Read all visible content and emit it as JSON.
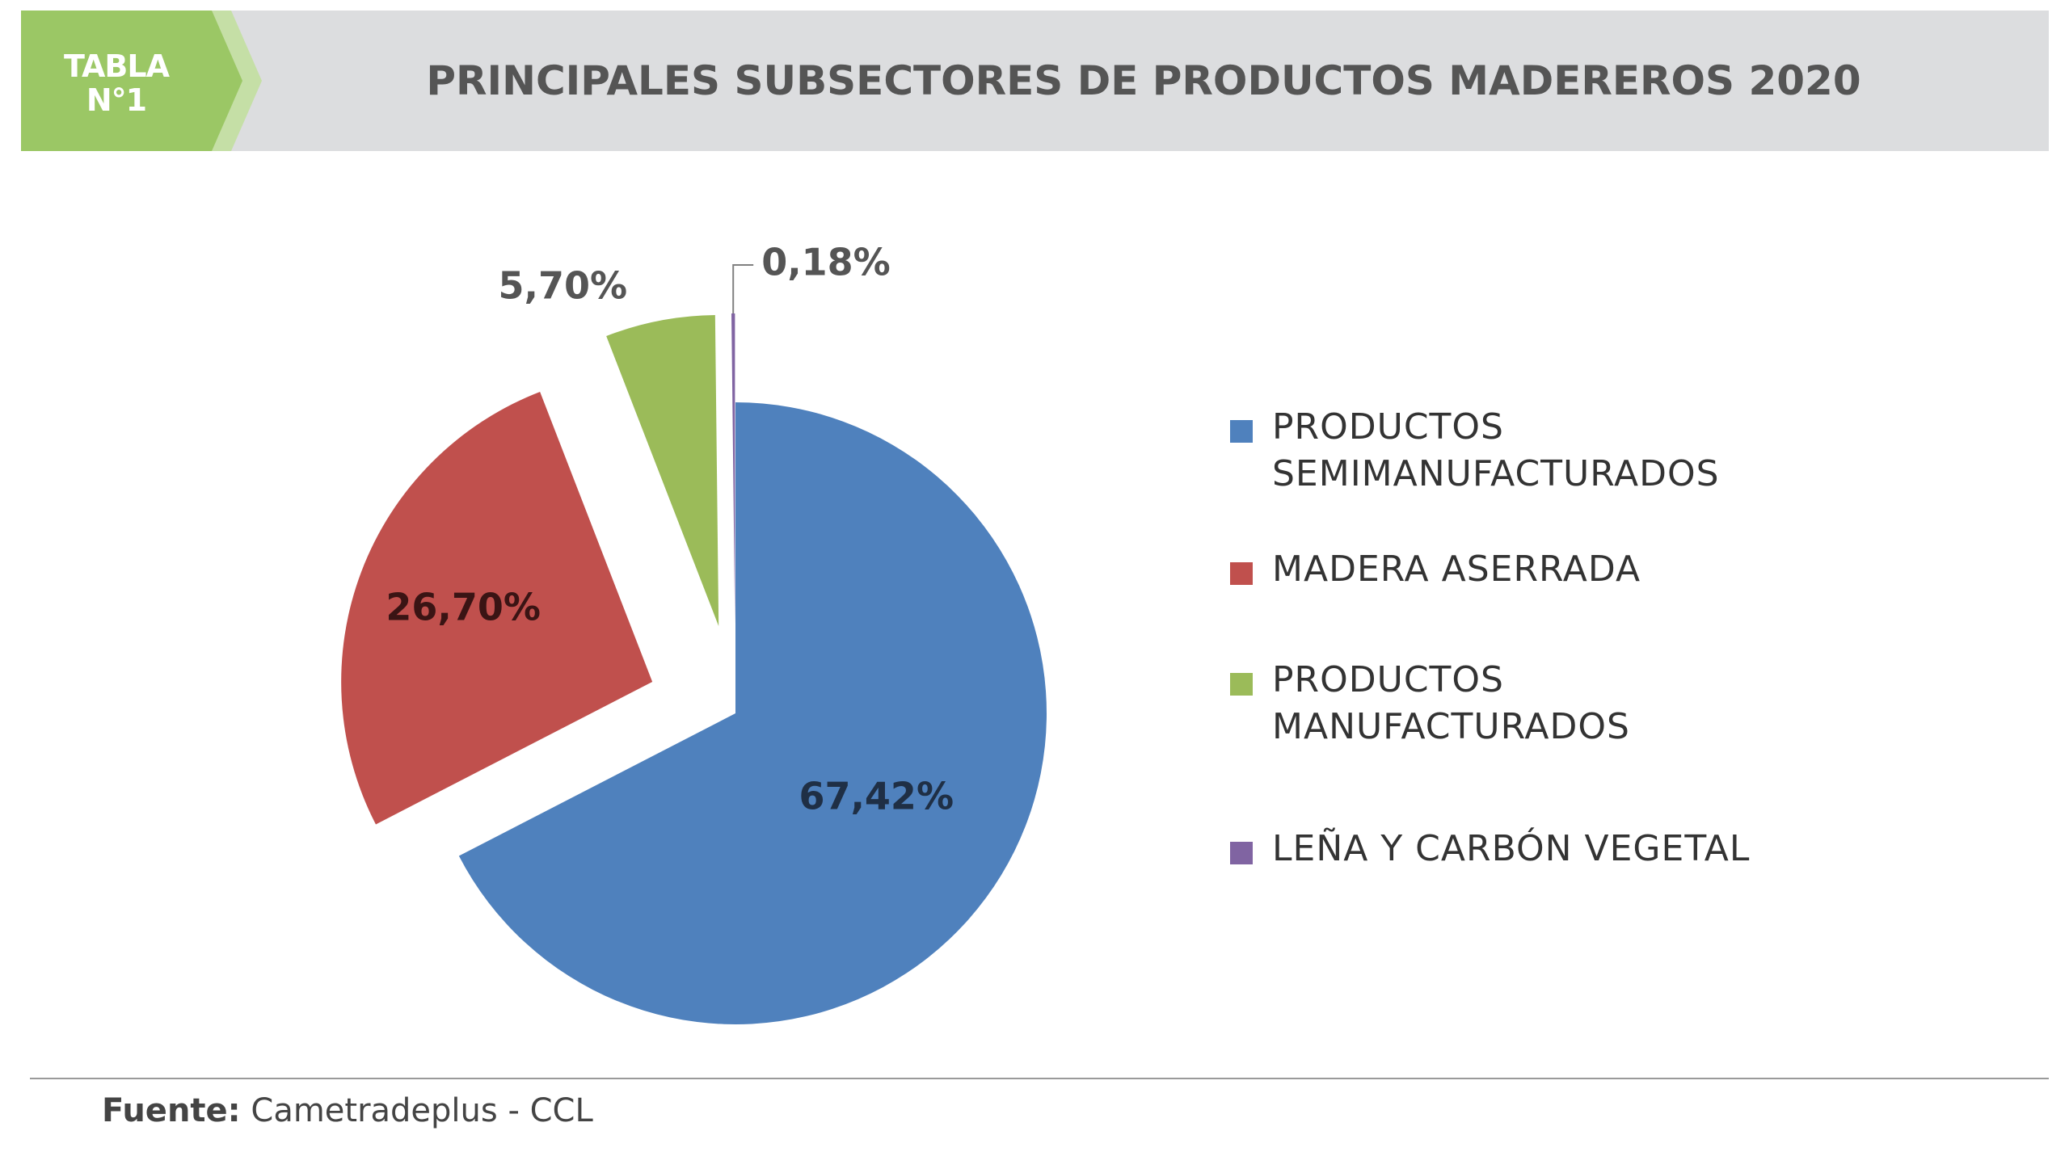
{
  "header": {
    "badge_line1": "TABLA",
    "badge_line2": "N°1",
    "title": "PRINCIPALES SUBSECTORES DE PRODUCTOS MADEREROS 2020"
  },
  "colors": {
    "header_bg": "#dcdddf",
    "badge_green": "#9bc765",
    "badge_light_green": "#c5dfa6"
  },
  "chart_data": {
    "type": "pie",
    "title": "PRINCIPALES SUBSECTORES DE PRODUCTOS MADEREROS 2020",
    "legend_position": "right",
    "slices": [
      {
        "name": "PRODUCTOS SEMIMANUFACTURADOS",
        "value": 67.42,
        "label": "67,42%",
        "color": "#4f81bd",
        "exploded": false
      },
      {
        "name": "MADERA ASERRADA",
        "value": 26.7,
        "label": "26,70%",
        "color": "#c0504d",
        "exploded": true
      },
      {
        "name": "PRODUCTOS MANUFACTURADOS",
        "value": 5.7,
        "label": "5,70%",
        "color": "#9bbb59",
        "exploded": true
      },
      {
        "name": "LEÑA Y  CARBÓN VEGETAL",
        "value": 0.18,
        "label": "0,18%",
        "color": "#8064a2",
        "exploded": true
      }
    ]
  },
  "legend": {
    "items": [
      {
        "line1": "PRODUCTOS",
        "line2": "SEMIMANUFACTURADOS"
      },
      {
        "line1": "MADERA ASERRADA",
        "line2": ""
      },
      {
        "line1": "PRODUCTOS",
        "line2": "MANUFACTURADOS"
      },
      {
        "line1": "LEÑA Y  CARBÓN VEGETAL",
        "line2": ""
      }
    ]
  },
  "footer": {
    "source_key": "Fuente:",
    "source_value": " Cametradeplus - CCL"
  }
}
